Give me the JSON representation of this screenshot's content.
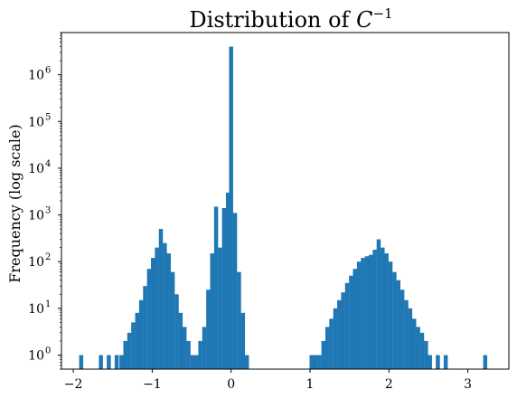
{
  "chart_data": {
    "type": "bar",
    "title": "Distribution of C^{-1}",
    "title_parts": {
      "prefix": "Distribution of ",
      "var": "C",
      "exp": "−1"
    },
    "xlabel": "",
    "ylabel": "Frequency (log scale)",
    "yscale": "log",
    "xlim": [
      -2.15,
      3.52
    ],
    "ylim": [
      0.5,
      8000000
    ],
    "xticks": [
      -2,
      -1,
      0,
      1,
      2,
      3
    ],
    "xtick_labels": [
      "−2",
      "−1",
      "0",
      "1",
      "2",
      "3"
    ],
    "yticks": [
      1,
      10,
      100,
      1000,
      10000,
      100000,
      1000000
    ],
    "ytick_labels": [
      {
        "base": "10",
        "exp": "0"
      },
      {
        "base": "10",
        "exp": "1"
      },
      {
        "base": "10",
        "exp": "2"
      },
      {
        "base": "10",
        "exp": "3"
      },
      {
        "base": "10",
        "exp": "4"
      },
      {
        "base": "10",
        "exp": "5"
      },
      {
        "base": "10",
        "exp": "6"
      }
    ],
    "bar_color": "#1f77b4",
    "bin_width": 0.0515,
    "bins": [
      {
        "x": -1.9,
        "count": 1
      },
      {
        "x": -1.65,
        "count": 1
      },
      {
        "x": -1.55,
        "count": 1
      },
      {
        "x": -1.45,
        "count": 1
      },
      {
        "x": -1.39,
        "count": 1
      },
      {
        "x": -1.34,
        "count": 2
      },
      {
        "x": -1.29,
        "count": 3
      },
      {
        "x": -1.24,
        "count": 5
      },
      {
        "x": -1.19,
        "count": 8
      },
      {
        "x": -1.14,
        "count": 15
      },
      {
        "x": -1.09,
        "count": 30
      },
      {
        "x": -1.04,
        "count": 70
      },
      {
        "x": -0.99,
        "count": 120
      },
      {
        "x": -0.94,
        "count": 200
      },
      {
        "x": -0.89,
        "count": 500
      },
      {
        "x": -0.84,
        "count": 250
      },
      {
        "x": -0.79,
        "count": 150
      },
      {
        "x": -0.74,
        "count": 60
      },
      {
        "x": -0.69,
        "count": 20
      },
      {
        "x": -0.64,
        "count": 8
      },
      {
        "x": -0.59,
        "count": 4
      },
      {
        "x": -0.54,
        "count": 2
      },
      {
        "x": -0.49,
        "count": 1
      },
      {
        "x": -0.44,
        "count": 1
      },
      {
        "x": -0.39,
        "count": 2
      },
      {
        "x": -0.34,
        "count": 4
      },
      {
        "x": -0.29,
        "count": 25
      },
      {
        "x": -0.24,
        "count": 150
      },
      {
        "x": -0.19,
        "count": 1500
      },
      {
        "x": -0.14,
        "count": 200
      },
      {
        "x": -0.09,
        "count": 1400
      },
      {
        "x": -0.04,
        "count": 3000
      },
      {
        "x": 0.0,
        "count": 4000000
      },
      {
        "x": 0.05,
        "count": 1100
      },
      {
        "x": 0.1,
        "count": 60
      },
      {
        "x": 0.15,
        "count": 8
      },
      {
        "x": 0.2,
        "count": 1
      },
      {
        "x": 1.02,
        "count": 1
      },
      {
        "x": 1.07,
        "count": 1
      },
      {
        "x": 1.12,
        "count": 1
      },
      {
        "x": 1.17,
        "count": 2
      },
      {
        "x": 1.22,
        "count": 4
      },
      {
        "x": 1.27,
        "count": 6
      },
      {
        "x": 1.32,
        "count": 10
      },
      {
        "x": 1.37,
        "count": 15
      },
      {
        "x": 1.42,
        "count": 22
      },
      {
        "x": 1.47,
        "count": 35
      },
      {
        "x": 1.52,
        "count": 50
      },
      {
        "x": 1.57,
        "count": 70
      },
      {
        "x": 1.62,
        "count": 100
      },
      {
        "x": 1.67,
        "count": 120
      },
      {
        "x": 1.72,
        "count": 130
      },
      {
        "x": 1.77,
        "count": 140
      },
      {
        "x": 1.82,
        "count": 180
      },
      {
        "x": 1.87,
        "count": 300
      },
      {
        "x": 1.92,
        "count": 200
      },
      {
        "x": 1.97,
        "count": 150
      },
      {
        "x": 2.02,
        "count": 100
      },
      {
        "x": 2.07,
        "count": 60
      },
      {
        "x": 2.12,
        "count": 40
      },
      {
        "x": 2.17,
        "count": 25
      },
      {
        "x": 2.22,
        "count": 15
      },
      {
        "x": 2.27,
        "count": 10
      },
      {
        "x": 2.32,
        "count": 6
      },
      {
        "x": 2.37,
        "count": 4
      },
      {
        "x": 2.42,
        "count": 3
      },
      {
        "x": 2.47,
        "count": 2
      },
      {
        "x": 2.52,
        "count": 1
      },
      {
        "x": 2.62,
        "count": 1
      },
      {
        "x": 2.72,
        "count": 1
      },
      {
        "x": 3.22,
        "count": 1
      }
    ]
  }
}
